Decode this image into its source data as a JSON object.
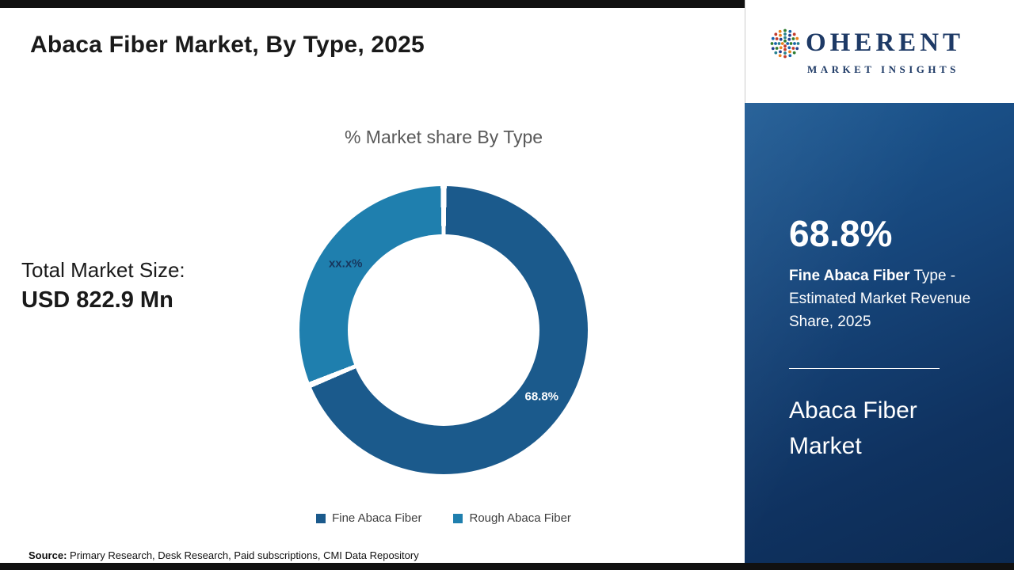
{
  "header": {
    "title": "Abaca Fiber Market, By Type, 2025"
  },
  "chart_data": {
    "type": "pie",
    "subtype": "donut",
    "title": "% Market share By Type",
    "legend_position": "bottom",
    "segments": [
      {
        "label": "Fine Abaca Fiber",
        "value": 68.8,
        "display": "68.8%",
        "color": "#1b5a8c"
      },
      {
        "label": "Rough Abaca Fiber",
        "value": 31.2,
        "display": "xx.x%",
        "color": "#1f7fae"
      }
    ]
  },
  "total_market": {
    "label": "Total Market Size:",
    "value": "USD 822.9 Mn"
  },
  "legend": {
    "items": [
      {
        "label": "Fine Abaca Fiber"
      },
      {
        "label": "Rough Abaca Fiber"
      }
    ]
  },
  "source": {
    "label": "Source:",
    "text": " Primary Research, Desk Research, Paid subscriptions, CMI Data Repository"
  },
  "sidebar": {
    "logo": {
      "name": "OHERENT",
      "subtitle": "MARKET INSIGHTS",
      "brand_color": "#1e3a66"
    },
    "stat_value": "68.8%",
    "stat_bold": "Fine Abaca Fiber",
    "stat_rest": " Type - Estimated Market Revenue Share, 2025",
    "market_name": "Abaca Fiber Market"
  }
}
